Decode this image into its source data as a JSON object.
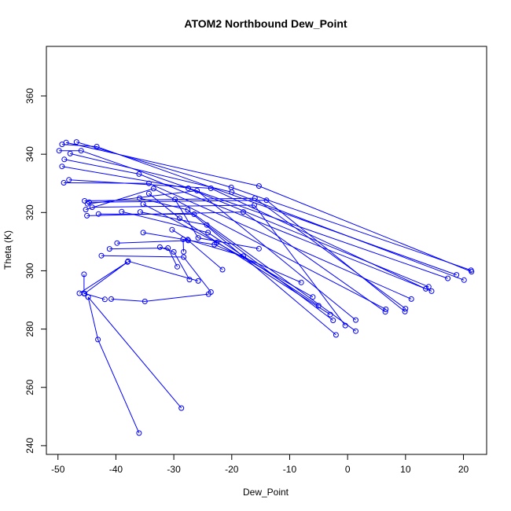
{
  "chart_data": {
    "type": "line",
    "title": "ATOM2 Northbound Dew_Point",
    "xlabel": "Dew_Point",
    "ylabel": "Theta (K)",
    "xlim": [
      -52,
      24
    ],
    "ylim": [
      237,
      377
    ],
    "xticks": [
      -50,
      -40,
      -30,
      -20,
      -10,
      0,
      10,
      20
    ],
    "yticks": [
      240,
      260,
      280,
      300,
      320,
      340,
      360
    ],
    "grid": false,
    "legend": "none",
    "series_color": "#0000ff",
    "series": [
      {
        "points": [
          [
            -46.8,
            344.2
          ],
          [
            -20.1,
            328.6
          ],
          [
            21.3,
            300.2
          ]
        ]
      },
      {
        "points": [
          [
            -48.6,
            344.0
          ],
          [
            -15.3,
            329.1
          ],
          [
            21.4,
            299.7
          ]
        ]
      },
      {
        "points": [
          [
            -49.3,
            343.4
          ],
          [
            -43.3,
            342.6
          ],
          [
            18.8,
            298.6
          ]
        ]
      },
      {
        "points": [
          [
            -49.8,
            341.2
          ],
          [
            -46.0,
            341.2
          ],
          [
            17.3,
            297.4
          ]
        ]
      },
      {
        "points": [
          [
            -47.9,
            340.2
          ],
          [
            -20.0,
            327.0
          ],
          [
            20.1,
            296.8
          ]
        ]
      },
      {
        "points": [
          [
            -48.9,
            338.2
          ],
          [
            -36.0,
            333.2
          ],
          [
            14.5,
            293.0
          ]
        ]
      },
      {
        "points": [
          [
            -49.3,
            335.8
          ],
          [
            -27.5,
            328.3
          ],
          [
            14.0,
            294.5
          ]
        ]
      },
      {
        "points": [
          [
            -48.1,
            331.2
          ],
          [
            -23.6,
            328.3
          ],
          [
            13.5,
            293.8
          ]
        ]
      },
      {
        "points": [
          [
            -49.0,
            330.2
          ],
          [
            -34.3,
            330.0
          ],
          [
            11.0,
            290.3
          ]
        ]
      },
      {
        "points": [
          [
            -45.4,
            324.0
          ],
          [
            -16.0,
            324.9
          ],
          [
            10.0,
            287.0
          ]
        ]
      },
      {
        "points": [
          [
            -44.6,
            323.5
          ],
          [
            -14.0,
            324.2
          ],
          [
            9.9,
            286.0
          ]
        ]
      },
      {
        "points": [
          [
            -45.2,
            321.0
          ],
          [
            -33.5,
            328.2
          ],
          [
            6.6,
            286.8
          ]
        ]
      },
      {
        "points": [
          [
            -45.0,
            318.9
          ],
          [
            -18.0,
            320.2
          ],
          [
            6.5,
            285.9
          ]
        ]
      },
      {
        "points": [
          [
            -44.9,
            323.0
          ],
          [
            -26.0,
            327.5
          ],
          [
            1.4,
            283.1
          ]
        ]
      },
      {
        "points": [
          [
            -44.1,
            321.8
          ],
          [
            -16.1,
            322.5
          ],
          [
            -0.4,
            281.2
          ]
        ]
      },
      {
        "points": [
          [
            -43.0,
            319.5
          ],
          [
            -26.5,
            319.4
          ],
          [
            1.4,
            279.3
          ]
        ]
      },
      {
        "points": [
          [
            -35.9,
            324.9
          ],
          [
            -27.6,
            320.9
          ],
          [
            -2.0,
            278.0
          ]
        ]
      },
      {
        "points": [
          [
            -35.8,
            320.2
          ],
          [
            -24.3,
            315.7
          ],
          [
            -2.5,
            283.0
          ]
        ]
      },
      {
        "points": [
          [
            -34.3,
            326.5
          ],
          [
            -29.0,
            318.0
          ],
          [
            -3.0,
            285.0
          ]
        ]
      },
      {
        "points": [
          [
            -39.0,
            320.3
          ],
          [
            -24.1,
            313.1
          ],
          [
            -5.0,
            288.0
          ]
        ]
      },
      {
        "points": [
          [
            -35.3,
            322.9
          ],
          [
            -22.6,
            309.7
          ],
          [
            -6.0,
            291.0
          ]
        ]
      },
      {
        "points": [
          [
            -35.3,
            313.1
          ],
          [
            -23.0,
            309.0
          ],
          [
            -8.0,
            296.0
          ]
        ]
      },
      {
        "points": [
          [
            -29.8,
            324.5
          ],
          [
            -25.8,
            311.3
          ],
          [
            -15.3,
            307.6
          ]
        ]
      },
      {
        "points": [
          [
            -30.3,
            314.1
          ],
          [
            -27.6,
            310.7
          ],
          [
            -18.0,
            305.0
          ]
        ]
      },
      {
        "points": [
          [
            -28.4,
            310.8
          ],
          [
            -28.3,
            306.5
          ]
        ]
      },
      {
        "points": [
          [
            -39.8,
            309.5
          ],
          [
            -27.5,
            310.4
          ],
          [
            -21.6,
            300.4
          ]
        ]
      },
      {
        "points": [
          [
            -41.1,
            307.5
          ],
          [
            -31.0,
            307.8
          ],
          [
            -29.4,
            301.4
          ]
        ]
      },
      {
        "points": [
          [
            -42.5,
            305.2
          ],
          [
            -28.3,
            304.7
          ],
          [
            -23.6,
            292.7
          ]
        ]
      },
      {
        "points": [
          [
            -32.4,
            308.1
          ],
          [
            -30.0,
            306.5
          ],
          [
            -27.3,
            297.0
          ]
        ]
      },
      {
        "points": [
          [
            -37.9,
            303.3
          ],
          [
            -25.8,
            296.5
          ]
        ]
      },
      {
        "points": [
          [
            -45.5,
            298.8
          ],
          [
            -45.5,
            292.2
          ]
        ]
      },
      {
        "points": [
          [
            -46.3,
            292.3
          ],
          [
            -38.0,
            303.0
          ],
          [
            -45.4,
            292.2
          ],
          [
            -41.9,
            290.2
          ]
        ]
      },
      {
        "points": [
          [
            -44.8,
            291.0
          ],
          [
            -43.1,
            276.4
          ],
          [
            -36.0,
            244.3
          ]
        ]
      },
      {
        "points": [
          [
            -44.8,
            291.0
          ],
          [
            -28.7,
            252.9
          ]
        ]
      },
      {
        "points": [
          [
            -40.8,
            290.3
          ],
          [
            -35.0,
            289.5
          ],
          [
            -24.0,
            292.0
          ]
        ]
      }
    ]
  }
}
